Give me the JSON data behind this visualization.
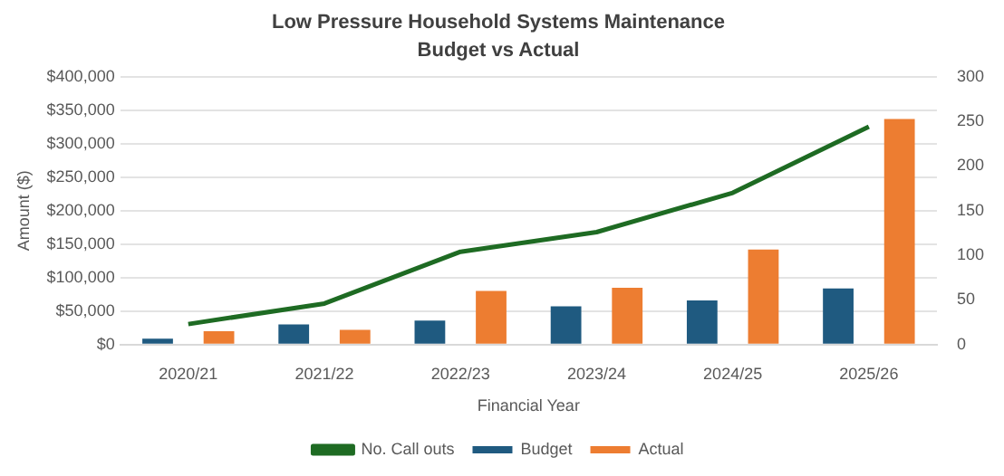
{
  "chart_data": {
    "type": "bar",
    "title": "Low Pressure Household Systems Maintenance",
    "subtitle": "Budget vs Actual",
    "xlabel": "Financial Year",
    "ylabel": "Amount ($)",
    "categories": [
      "2020/21",
      "2021/22",
      "2022/23",
      "2023/24",
      "2024/25",
      "2025/26"
    ],
    "series": [
      {
        "name": "Budget",
        "color": "#1f5a80",
        "values": [
          9000,
          30000,
          36000,
          57000,
          66000,
          84000
        ]
      },
      {
        "name": "Actual",
        "color": "#ed7d31",
        "values": [
          20000,
          22000,
          80000,
          85000,
          142000,
          337000
        ]
      },
      {
        "name": "No. Call outs",
        "type": "line",
        "axis": "y2",
        "color": "#1e6b23",
        "values": [
          23,
          46,
          104,
          126,
          170,
          244
        ]
      }
    ],
    "ylim": [
      0,
      400000
    ],
    "yticks": [
      {
        "value": 0,
        "label": "$0"
      },
      {
        "value": 50000,
        "label": "$50,000"
      },
      {
        "value": 100000,
        "label": "$100,000"
      },
      {
        "value": 150000,
        "label": "$150,000"
      },
      {
        "value": 200000,
        "label": "$200,000"
      },
      {
        "value": 250000,
        "label": "$250,000"
      },
      {
        "value": 300000,
        "label": "$300,000"
      },
      {
        "value": 350000,
        "label": "$350,000"
      },
      {
        "value": 400000,
        "label": "$400,000"
      }
    ],
    "y2lim": [
      0,
      300
    ],
    "y2ticks": [
      0,
      50,
      100,
      150,
      200,
      250,
      300
    ],
    "grid": "y",
    "legend": "bottom",
    "marker": "none"
  }
}
